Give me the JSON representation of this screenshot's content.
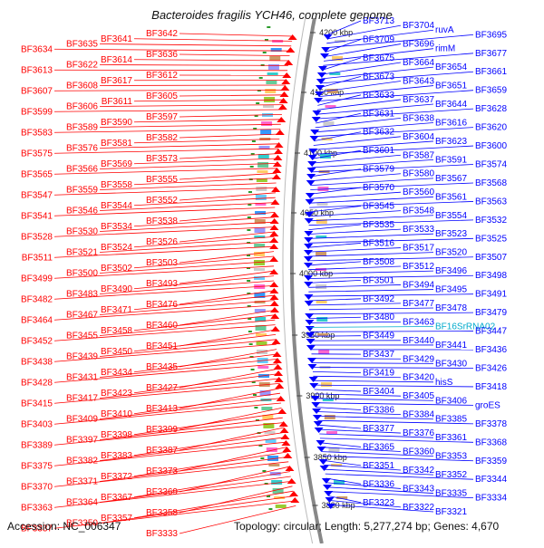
{
  "title": "Bacteroides fragilis YCH46, complete genome",
  "accession": "Accession: NC_006347",
  "summary": "Topology: circular; Length: 5,277,274 bp; Genes: 4,670",
  "colors": {
    "forward": "#ff0000",
    "reverse": "#0000ff",
    "rna": "#00aacc",
    "backbone": "#777777",
    "tick": "#2a9a2a"
  },
  "scale_ticks": [
    "4200 kbp",
    "4150 kbp",
    "4100 kbp",
    "4050 kbp",
    "4000 kbp",
    "3950 kbp",
    "3900 kbp",
    "3850 kbp",
    "3800 kbp"
  ],
  "left_labels": [
    "BF3642",
    "BF3641",
    "BF3635",
    "BF3634",
    "BF3636",
    "BF3614",
    "BF3622",
    "BF3613",
    "BF3612",
    "BF3617",
    "BF3608",
    "BF3607",
    "BF3605",
    "BF3611",
    "BF3606",
    "BF3599",
    "BF3597",
    "BF3590",
    "BF3589",
    "BF3583",
    "BF3582",
    "BF3581",
    "BF3576",
    "BF3575",
    "BF3573",
    "BF3569",
    "BF3566",
    "BF3565",
    "BF3555",
    "BF3558",
    "BF3559",
    "BF3547",
    "BF3552",
    "BF3544",
    "BF3546",
    "BF3541",
    "BF3538",
    "BF3534",
    "BF3530",
    "BF3528",
    "BF3526",
    "BF3524",
    "BF3521",
    "BF3511",
    "BF3503",
    "BF3502",
    "BF3500",
    "BF3499",
    "BF3493",
    "BF3490",
    "BF3483",
    "BF3482",
    "BF3476",
    "BF3471",
    "BF3467",
    "BF3464",
    "BF3460",
    "BF3458",
    "BF3455",
    "BF3452",
    "BF3451",
    "BF3450",
    "BF3439",
    "BF3438",
    "BF3435",
    "BF3434",
    "BF3431",
    "BF3428",
    "BF3427",
    "BF3423",
    "BF3417",
    "BF3415",
    "BF3413",
    "BF3410",
    "BF3409",
    "BF3403",
    "BF3399",
    "BF3398",
    "BF3397",
    "BF3389",
    "BF3387",
    "BF3383",
    "BF3382",
    "BF3375",
    "BF3373",
    "BF3372",
    "BF3371",
    "BF3370",
    "BF3369",
    "BF3367",
    "BF3364",
    "BF3363",
    "BF3358",
    "BF3357",
    "BF3350",
    "BF3337",
    "BF3333"
  ],
  "right_labels": [
    "BF3713",
    "BF3704",
    "ruvA",
    "BF3695",
    "BF3709",
    "BF3696",
    "rimM",
    "BF3677",
    "BF3675",
    "BF3664",
    "BF3654",
    "BF3661",
    "BF3673",
    "BF3643",
    "BF3651",
    "BF3659",
    "BF3633",
    "BF3637",
    "BF3644",
    "BF3628",
    "BF3631",
    "BF3638",
    "BF3616",
    "BF3620",
    "BF3632",
    "BF3604",
    "BF3623",
    "BF3600",
    "BF3601",
    "BF3587",
    "BF3591",
    "BF3574",
    "BF3579",
    "BF3580",
    "BF3567",
    "BF3568",
    "BF3570",
    "BF3560",
    "BF3561",
    "BF3563",
    "BF3545",
    "BF3548",
    "BF3554",
    "BF3532",
    "BF3535",
    "BF3533",
    "BF3523",
    "BF3525",
    "BF3516",
    "BF3517",
    "BF3520",
    "BF3507",
    "BF3508",
    "BF3512",
    "BF3496",
    "BF3498",
    "BF3501",
    "BF3494",
    "BF3495",
    "BF3491",
    "BF3492",
    "BF3477",
    "BF3478",
    "BF3479",
    "BF3480",
    "BF3463",
    "BF16SrRNA02",
    "BF3447",
    "BF3449",
    "BF3440",
    "BF3441",
    "BF3436",
    "BF3437",
    "BF3429",
    "BF3430",
    "BF3426",
    "BF3419",
    "BF3420",
    "hisS",
    "BF3418",
    "BF3404",
    "BF3405",
    "BF3406",
    "groES",
    "BF3386",
    "BF3384",
    "BF3385",
    "BF3378",
    "BF3377",
    "BF3376",
    "BF3361",
    "BF3368",
    "BF3365",
    "BF3360",
    "BF3353",
    "BF3359",
    "BF3351",
    "BF3342",
    "BF3352",
    "BF3344",
    "BF3336",
    "BF3343",
    "BF3335",
    "BF3334",
    "BF3323",
    "BF3322",
    "BF3321"
  ]
}
